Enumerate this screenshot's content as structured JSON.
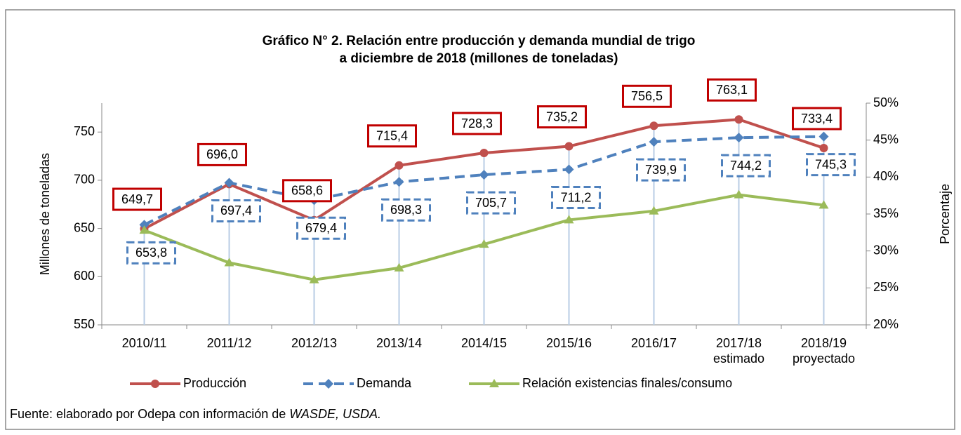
{
  "chart_data": {
    "type": "line",
    "title": [
      "Gráfico N° 2. Relación entre producción y demanda mundial de trigo",
      "a diciembre de 2018 (millones de toneladas)"
    ],
    "ylabel": "Millones de toneladas",
    "y2label": "Porcentaje",
    "categories": [
      "2010/11",
      "2011/12",
      "2012/13",
      "2013/14",
      "2014/15",
      "2015/16",
      "2016/17",
      "2017/18\nestimado",
      "2018/19\nproyectado"
    ],
    "ylim": [
      550,
      780
    ],
    "yticks": [
      550,
      600,
      650,
      700,
      750
    ],
    "y2lim": [
      20,
      50
    ],
    "y2ticks": [
      {
        "value": 20,
        "label": "20%"
      },
      {
        "value": 25,
        "label": "25%"
      },
      {
        "value": 30,
        "label": "30%"
      },
      {
        "value": 35,
        "label": "35%"
      },
      {
        "value": 40,
        "label": "40%"
      },
      {
        "value": 45,
        "label": "45%"
      },
      {
        "value": 50,
        "label": "50%"
      }
    ],
    "series": [
      {
        "name": "Producción",
        "color": "#c0504d",
        "marker": "circle",
        "values": [
          649.7,
          696.0,
          658.6,
          715.4,
          728.3,
          735.2,
          756.5,
          763.1,
          733.4
        ],
        "value_labels": [
          "649,7",
          "696,0",
          "658,6",
          "715,4",
          "728,3",
          "735,2",
          "756,5",
          "763,1",
          "733,4"
        ]
      },
      {
        "name": "Demanda",
        "color": "#4f81bd",
        "marker": "diamond",
        "dashed": true,
        "values": [
          653.8,
          697.4,
          679.4,
          698.3,
          705.7,
          711.2,
          739.9,
          744.2,
          745.3
        ],
        "value_labels": [
          "653,8",
          "697,4",
          "679,4",
          "698,3",
          "705,7",
          "711,2",
          "739,9",
          "744,2",
          "745,3"
        ]
      },
      {
        "name": "Relación existencias finales/consumo",
        "color": "#9bbb59",
        "marker": "triangle",
        "axis": "y2",
        "values": [
          32.8,
          28.4,
          26.1,
          27.7,
          30.9,
          34.2,
          35.4,
          37.6,
          36.2
        ]
      }
    ],
    "source": "Fuente: elaborado por Odepa con información de ",
    "source_italic": "WASDE, USDA."
  }
}
